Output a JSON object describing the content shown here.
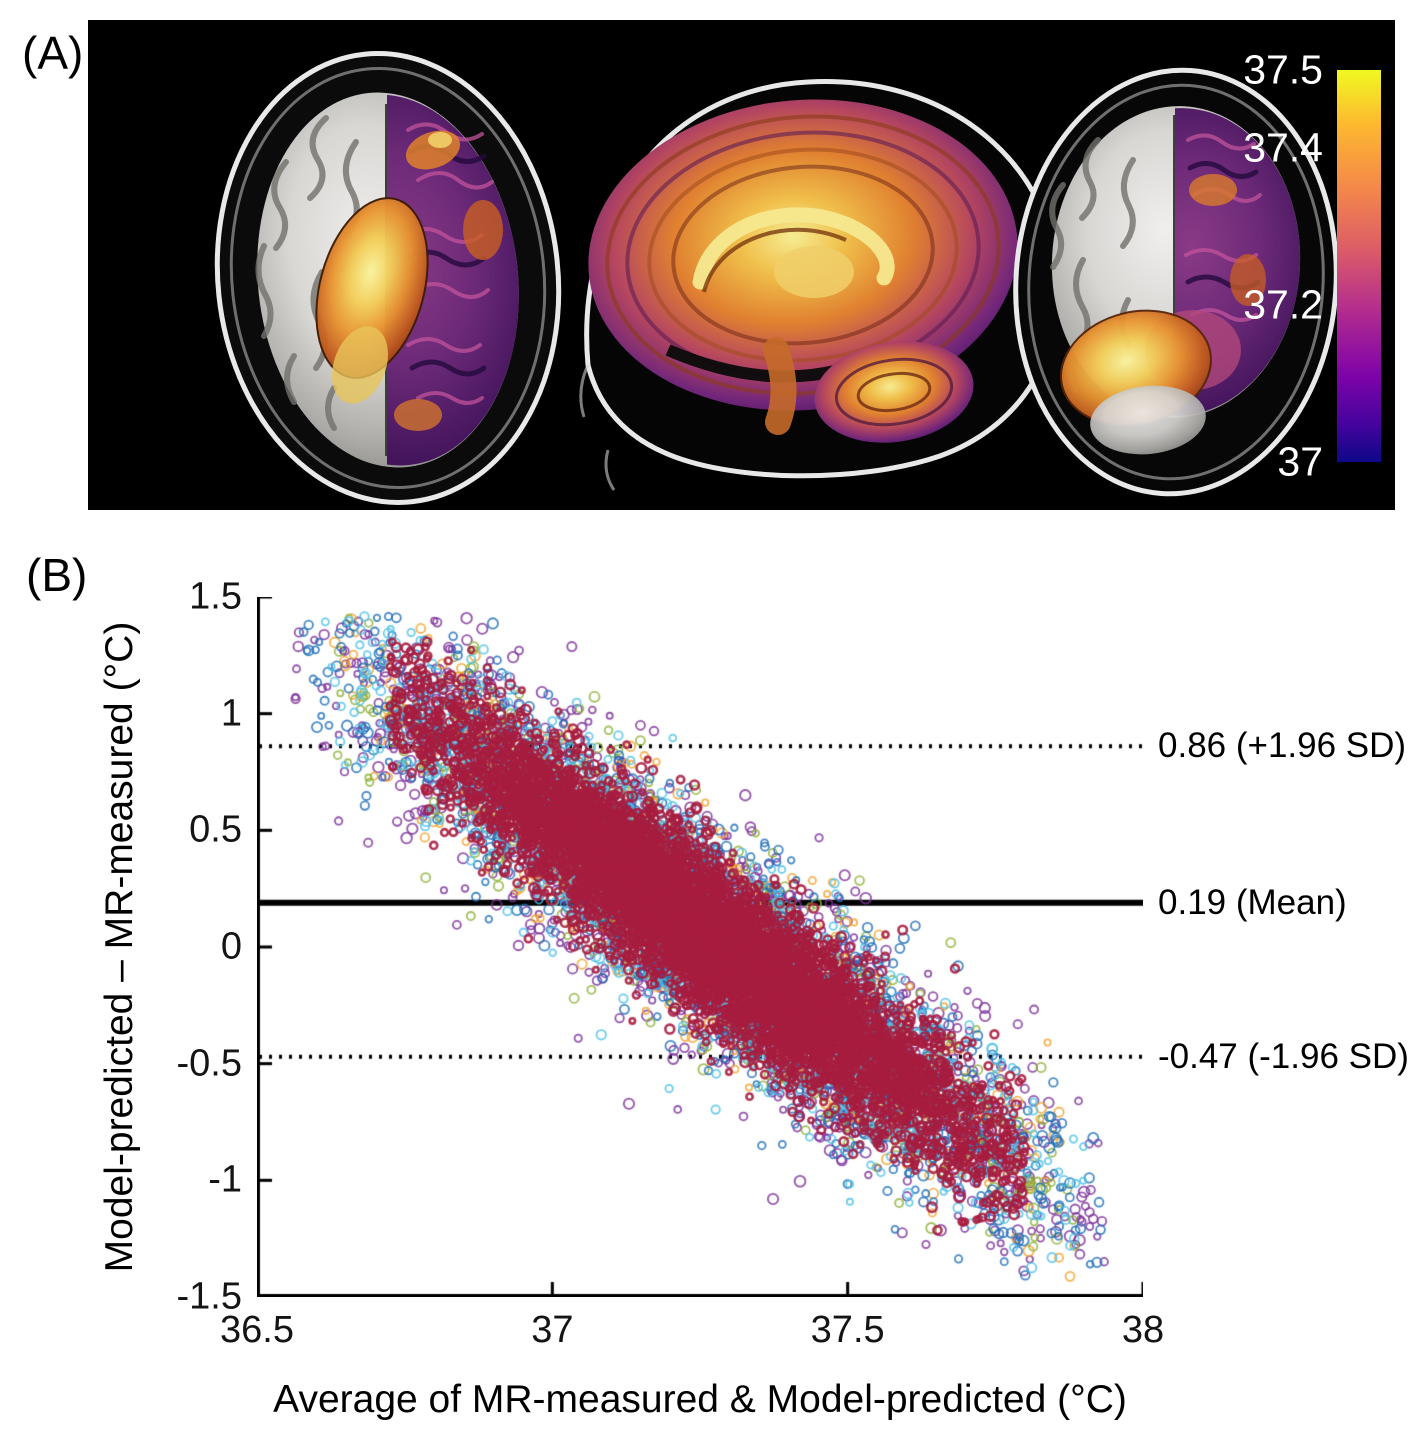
{
  "figure": {
    "panel_a": {
      "label": "(A)",
      "views": [
        "axial",
        "sagittal",
        "coronal"
      ],
      "colorbar": {
        "min": 37,
        "max": 37.5,
        "tick_labels": [
          "37.5",
          "37.4",
          "37.2",
          "37"
        ],
        "colormap": "plasma"
      }
    },
    "panel_b": {
      "label": "(B)"
    }
  },
  "chart_data": {
    "type": "scatter",
    "title": "",
    "xlabel": "Average of MR-measured & Model-predicted (°C)",
    "ylabel": "Model-predicted – MR-measured (°C)",
    "xlim": [
      36.5,
      38
    ],
    "ylim": [
      -1.5,
      1.5
    ],
    "xticks": [
      36.5,
      37,
      37.5,
      38
    ],
    "xtick_labels": [
      "36.5",
      "37",
      "37.5",
      "38"
    ],
    "yticks": [
      -1.5,
      -1,
      -0.5,
      0,
      0.5,
      1,
      1.5
    ],
    "ytick_labels": [
      "-1.5",
      "-1",
      "-0.5",
      "0",
      "0.5",
      "1",
      "1.5"
    ],
    "grid": false,
    "legend": "none",
    "axis_color": "#000000",
    "background": "#ffffff",
    "reference_lines": [
      {
        "value": 0.86,
        "style": "dotted",
        "label": "0.86 (+1.96 SD)"
      },
      {
        "value": 0.19,
        "style": "solid",
        "label": "0.19 (Mean)"
      },
      {
        "value": -0.47,
        "style": "dotted",
        "label": "-0.47 (-1.96 SD)"
      }
    ],
    "series": [
      {
        "name": "series-purple",
        "color": "#7c2f9a",
        "marker": "open-circle",
        "n": 2000,
        "seed": 101,
        "center_x": 37.26,
        "center_y": 0.06,
        "slope": -1.87,
        "sd_along_x": 0.31,
        "sd_noise_y": 0.26,
        "clip_sigma": 2.3,
        "marker_radius_px": [
          3,
          5.4
        ]
      },
      {
        "name": "series-orange",
        "color": "#f0a42e",
        "marker": "open-circle",
        "n": 850,
        "seed": 102,
        "center_x": 37.26,
        "center_y": 0.06,
        "slope": -1.87,
        "sd_along_x": 0.29,
        "sd_noise_y": 0.22,
        "clip_sigma": 2.2,
        "marker_radius_px": [
          3,
          5.2
        ]
      },
      {
        "name": "series-green",
        "color": "#8db23a",
        "marker": "open-circle",
        "n": 900,
        "seed": 103,
        "center_x": 37.26,
        "center_y": 0.06,
        "slope": -1.87,
        "sd_along_x": 0.285,
        "sd_noise_y": 0.22,
        "clip_sigma": 2.2,
        "marker_radius_px": [
          3,
          5.2
        ]
      },
      {
        "name": "series-blue",
        "color": "#1e6fb8",
        "marker": "open-circle",
        "n": 1700,
        "seed": 104,
        "center_x": 37.26,
        "center_y": 0.06,
        "slope": -1.87,
        "sd_along_x": 0.31,
        "sd_noise_y": 0.22,
        "clip_sigma": 2.2,
        "marker_radius_px": [
          3,
          5.2
        ]
      },
      {
        "name": "series-cyan",
        "color": "#4ec1e8",
        "marker": "open-circle",
        "n": 1500,
        "seed": 105,
        "center_x": 37.26,
        "center_y": 0.06,
        "slope": -1.87,
        "sd_along_x": 0.3,
        "sd_noise_y": 0.21,
        "clip_sigma": 2.15,
        "marker_radius_px": [
          3,
          5.0
        ]
      },
      {
        "name": "series-crimson",
        "color": "#a71d3f",
        "marker": "open-circle",
        "n": 7000,
        "seed": 106,
        "center_x": 37.26,
        "center_y": 0.06,
        "slope": -1.87,
        "sd_along_x": 0.235,
        "sd_noise_y": 0.165,
        "clip_sigma": 2.3,
        "marker_radius_px": [
          2.6,
          5.0
        ]
      }
    ]
  }
}
